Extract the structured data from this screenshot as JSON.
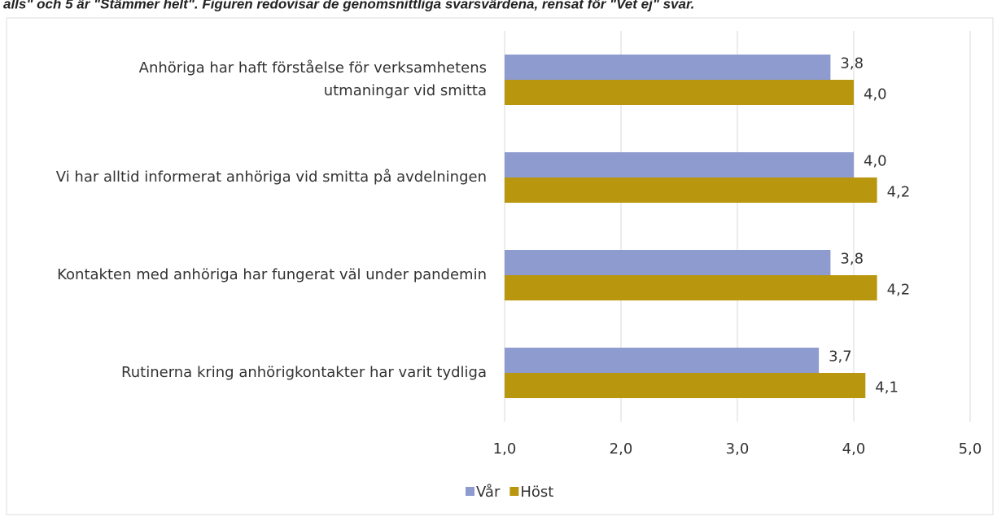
{
  "chart_data": {
    "type": "bar",
    "orientation": "horizontal",
    "title": "alls\" och 5 är \"Stämmer helt\". Figuren redovisar de genomsnittliga svarsvärdena, rensat för \"Vet ej\" svar.",
    "categories": [
      "Anhöriga har haft förståelse för verksamhetens\nutmaningar vid smitta",
      "Vi har alltid informerat anhöriga vid smitta på avdelningen",
      "Kontakten med anhöriga har fungerat väl under pandemin",
      "Rutinerna kring anhörigkontakter har varit tydliga"
    ],
    "series": [
      {
        "name": "Vår",
        "color": "#8e9bcf",
        "values": [
          3.8,
          4.0,
          3.8,
          3.7
        ],
        "value_labels": [
          "3,8",
          "4,0",
          "3,8",
          "3,7"
        ]
      },
      {
        "name": "Höst",
        "color": "#b8960e",
        "values": [
          4.0,
          4.2,
          4.2,
          4.1
        ],
        "value_labels": [
          "4,0",
          "4,2",
          "4,2",
          "4,1"
        ]
      }
    ],
    "xlim": [
      1,
      5
    ],
    "xticks": [
      {
        "value": 1,
        "label": "1,0"
      },
      {
        "value": 2,
        "label": "2,0"
      },
      {
        "value": 3,
        "label": "3,0"
      },
      {
        "value": 4,
        "label": "4,0"
      },
      {
        "value": 5,
        "label": "5,0"
      }
    ],
    "grid": true,
    "legend": "bottom"
  }
}
